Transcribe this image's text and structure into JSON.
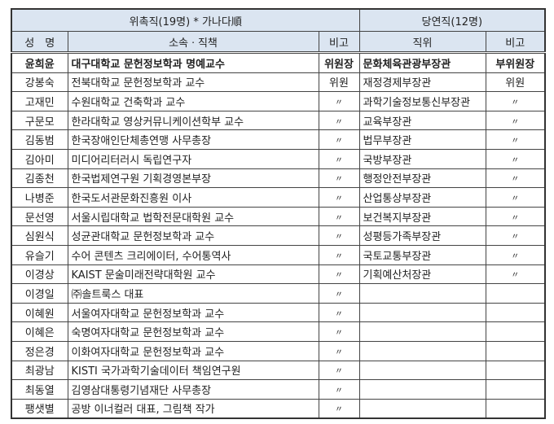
{
  "header": {
    "appointed_title": "위촉직(19명) * 가나다順",
    "exofficio_title": "당연직(12명)",
    "col_name": "성　명",
    "col_affiliation": "소속ㆍ직책",
    "col_note": "비고",
    "col_position": "직위",
    "col_note2": "비고"
  },
  "rows": [
    {
      "name": "윤희윤",
      "affiliation": "대구대학교 문헌정보학과 명예교수",
      "note": "위원장",
      "position": "문화체육관광부장관",
      "note2": "부위원장"
    },
    {
      "name": "강봉숙",
      "affiliation": "전북대학교 문헌정보학과 교수",
      "note": "위원",
      "position": "재정경제부장관",
      "note2": "위원"
    },
    {
      "name": "고재민",
      "affiliation": "수원대학교 건축학과 교수",
      "note": "〃",
      "position": "과학기술정보통신부장관",
      "note2": "〃"
    },
    {
      "name": "구문모",
      "affiliation": "한라대학교 영상커뮤니케이션학부 교수",
      "note": "〃",
      "position": "교육부장관",
      "note2": "〃"
    },
    {
      "name": "김동범",
      "affiliation": "한국장애인단체총연맹 사무총장",
      "note": "〃",
      "position": "법무부장관",
      "note2": "〃"
    },
    {
      "name": "김아미",
      "affiliation": "미디어리터러시 독립연구자",
      "note": "〃",
      "position": "국방부장관",
      "note2": "〃"
    },
    {
      "name": "김종천",
      "affiliation": "한국법제연구원 기획경영본부장",
      "note": "〃",
      "position": "행정안전부장관",
      "note2": "〃"
    },
    {
      "name": "나병준",
      "affiliation": "한국도서관문화진흥원 이사",
      "note": "〃",
      "position": "산업통상부장관",
      "note2": "〃"
    },
    {
      "name": "문선영",
      "affiliation": "서울시립대학교 법학전문대학원 교수",
      "note": "〃",
      "position": "보건복지부장관",
      "note2": "〃"
    },
    {
      "name": "심원식",
      "affiliation": "성균관대학교 문헌정보학과 교수",
      "note": "〃",
      "position": "성평등가족부장관",
      "note2": "〃"
    },
    {
      "name": "유슬기",
      "affiliation": "수어 콘텐츠 크리에이터, 수어통역사",
      "note": "〃",
      "position": "국토교통부장관",
      "note2": "〃"
    },
    {
      "name": "이경상",
      "affiliation": "KAIST 문술미래전략대학원 교수",
      "note": "〃",
      "position": "기획예산처장관",
      "note2": "〃"
    },
    {
      "name": "이경일",
      "affiliation": "㈜솔트룩스 대표",
      "note": "〃",
      "position": "",
      "note2": ""
    },
    {
      "name": "이혜원",
      "affiliation": "서울여자대학교 문헌정보학과 교수",
      "note": "〃",
      "position": "",
      "note2": ""
    },
    {
      "name": "이혜은",
      "affiliation": "숙명여자대학교 문헌정보학과 교수",
      "note": "〃",
      "position": "",
      "note2": ""
    },
    {
      "name": "정은경",
      "affiliation": "이화여자대학교 문헌정보학과 교수",
      "note": "〃",
      "position": "",
      "note2": ""
    },
    {
      "name": "최광남",
      "affiliation": "KISTI 국가과학기술데이터 책임연구원",
      "note": "〃",
      "position": "",
      "note2": ""
    },
    {
      "name": "최동열",
      "affiliation": "김영삼대통령기념재단 사무총장",
      "note": "〃",
      "position": "",
      "note2": ""
    },
    {
      "name": "팽샛별",
      "affiliation": "공방 이너컬러 대표, 그림책 작가",
      "note": "〃",
      "position": "",
      "note2": ""
    }
  ]
}
